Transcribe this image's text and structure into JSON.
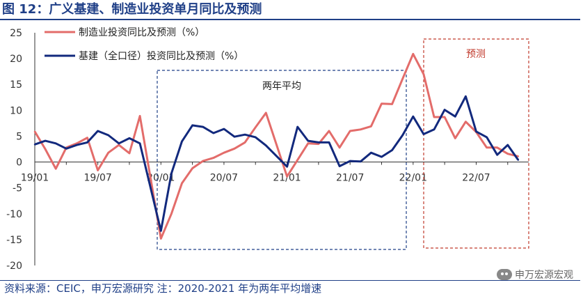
{
  "title": "图 12：广义基建、制造业投资单月同比及预测",
  "source": "资料来源：CEIC，申万宏源研究    注：2020-2021 年为两年平均增速",
  "watermark": "申万宏源宏观",
  "chart_data": {
    "type": "line",
    "ylim": [
      -20,
      25
    ],
    "yticks": [
      25,
      20,
      15,
      10,
      5,
      0,
      -5,
      -10,
      -15,
      -20
    ],
    "x_start": "19/01",
    "x_end": "22/12",
    "xtick_labels": [
      "19/01",
      "19/07",
      "20/01",
      "20/07",
      "21/01",
      "21/07",
      "22/01",
      "22/07"
    ],
    "grid": false,
    "legend_position": "top-left",
    "series": [
      {
        "name": "制造业投资同比及预测（%）",
        "color": "#e36c6a",
        "values": [
          5.9,
          2.5,
          -1.3,
          2.8,
          3.6,
          4.7,
          -1.6,
          1.8,
          3.3,
          1.7,
          8.9,
          null,
          -14.8,
          -10.0,
          -4.1,
          -1.2,
          0.2,
          0.8,
          1.8,
          2.6,
          3.8,
          6.7,
          9.5,
          null,
          -2.8,
          0.4,
          3.6,
          3.5,
          6.0,
          2.8,
          6.0,
          6.3,
          6.9,
          11.3,
          11.2,
          16.1,
          20.9,
          17.0,
          8.7,
          8.7,
          4.6,
          7.8,
          5.8,
          2.8,
          2.8,
          1.6,
          1.1
        ]
      },
      {
        "name": "基建（全口径）投资同比及预测（%）",
        "color": "#12297d",
        "values": [
          3.4,
          4.1,
          3.6,
          2.6,
          3.3,
          3.8,
          6.0,
          5.2,
          3.6,
          4.6,
          3.6,
          null,
          -13.3,
          -2.2,
          4.0,
          7.1,
          6.8,
          5.6,
          6.4,
          4.9,
          5.3,
          4.8,
          3.2,
          null,
          -0.9,
          6.8,
          4.1,
          3.8,
          3.8,
          -0.8,
          0.2,
          0.1,
          1.8,
          1.0,
          2.3,
          5.2,
          8.8,
          5.4,
          6.3,
          10.1,
          8.8,
          12.7,
          5.9,
          4.8,
          1.4,
          3.3,
          0.4
        ]
      }
    ],
    "annotations": [
      "两年平均",
      "预测"
    ]
  }
}
